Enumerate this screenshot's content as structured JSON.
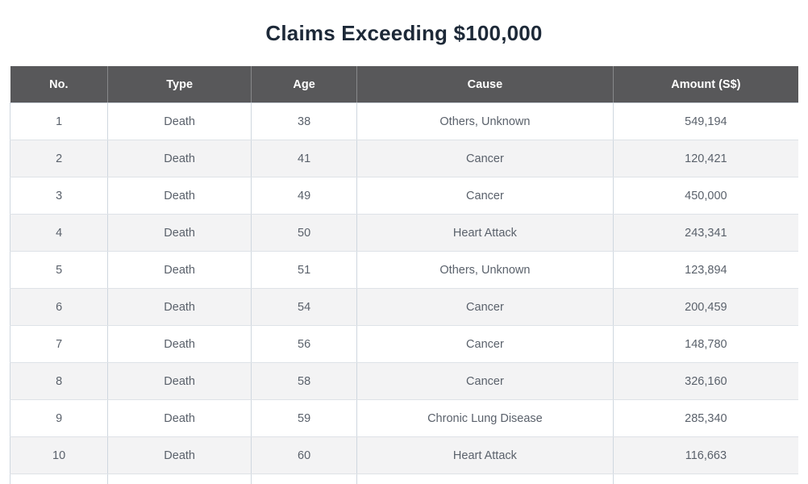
{
  "page": {
    "title": "Claims Exceeding $100,000"
  },
  "colors": {
    "title_text": "#1d2938",
    "header_bg": "#58585a",
    "header_text": "#ffffff",
    "row_stripe": "#f3f3f4",
    "body_text": "#5a616b",
    "border_horizontal": "#dee2e7",
    "border_vertical": "#cfd7df"
  },
  "chart_data": {
    "type": "table",
    "title": "Claims Exceeding $100,000",
    "columns": [
      "No.",
      "Type",
      "Age",
      "Cause",
      "Amount (S$)"
    ],
    "rows": [
      [
        "1",
        "Death",
        "38",
        "Others, Unknown",
        "549,194"
      ],
      [
        "2",
        "Death",
        "41",
        "Cancer",
        "120,421"
      ],
      [
        "3",
        "Death",
        "49",
        "Cancer",
        "450,000"
      ],
      [
        "4",
        "Death",
        "50",
        "Heart Attack",
        "243,341"
      ],
      [
        "5",
        "Death",
        "51",
        "Others, Unknown",
        "123,894"
      ],
      [
        "6",
        "Death",
        "54",
        "Cancer",
        "200,459"
      ],
      [
        "7",
        "Death",
        "56",
        "Cancer",
        "148,780"
      ],
      [
        "8",
        "Death",
        "58",
        "Cancer",
        "326,160"
      ],
      [
        "9",
        "Death",
        "59",
        "Chronic Lung Disease",
        "285,340"
      ],
      [
        "10",
        "Death",
        "60",
        "Heart Attack",
        "116,663"
      ]
    ]
  }
}
